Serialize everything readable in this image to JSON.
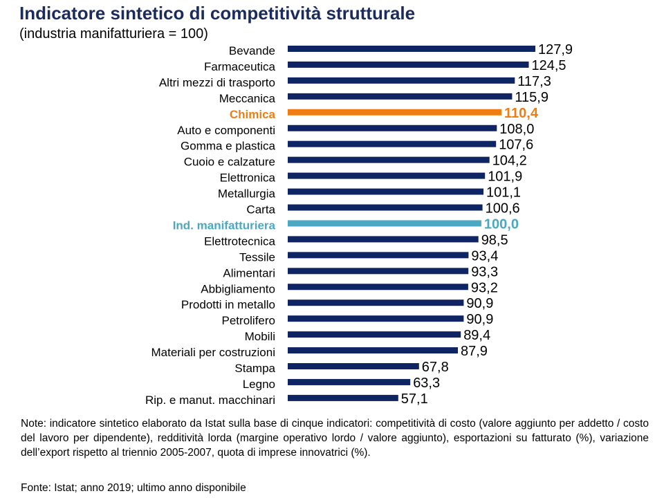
{
  "header": {
    "title": "Indicatore sintetico di competitività strutturale",
    "subtitle": "(industria manifatturiera = 100)"
  },
  "colors": {
    "default_bar": "#0f2463",
    "highlight_chimica": "#ef7d12",
    "highlight_industry": "#4aa8c0",
    "title": "#1b2b5c"
  },
  "chart_data": {
    "type": "bar",
    "orientation": "horizontal",
    "title": "Indicatore sintetico di competitività strutturale",
    "subtitle": "(industria manifatturiera = 100)",
    "xlabel": "",
    "ylabel": "",
    "xlim": [
      0,
      127.9
    ],
    "grid": false,
    "categories": [
      "Bevande",
      "Farmaceutica",
      "Altri mezzi di trasporto",
      "Meccanica",
      "Chimica",
      "Auto e componenti",
      "Gomma e plastica",
      "Cuoio e calzature",
      "Elettronica",
      "Metallurgia",
      "Carta",
      "Ind. manifatturiera",
      "Elettrotecnica",
      "Tessile",
      "Alimentari",
      "Abbigliamento",
      "Prodotti in metallo",
      "Petrolifero",
      "Mobili",
      "Materiali per costruzioni",
      "Stampa",
      "Legno",
      "Rip. e manut. macchinari"
    ],
    "values": [
      127.9,
      124.5,
      117.3,
      115.9,
      110.4,
      108.0,
      107.6,
      104.2,
      101.9,
      101.1,
      100.6,
      100.0,
      98.5,
      93.4,
      93.3,
      93.2,
      90.9,
      90.9,
      89.4,
      87.9,
      67.8,
      63.3,
      57.1
    ],
    "value_labels": [
      "127,9",
      "124,5",
      "117,3",
      "115,9",
      "110,4",
      "108,0",
      "107,6",
      "104,2",
      "101,9",
      "101,1",
      "100,6",
      "100,0",
      "98,5",
      "93,4",
      "93,3",
      "93,2",
      "90,9",
      "90,9",
      "89,4",
      "87,9",
      "67,8",
      "63,3",
      "57,1"
    ],
    "highlights": {
      "Chimica": "highlight_chimica",
      "Ind. manifatturiera": "highlight_industry"
    }
  },
  "footer": {
    "note": "Note: indicatore sintetico elaborato da Istat sulla base di cinque indicatori: competitività di costo (valore aggiunto per addetto / costo del lavoro per dipendente), redditività lorda (margine operativo lordo / valore aggiunto), esportazioni su fatturato (%), variazione dell’export rispetto al triennio 2005-2007, quota di imprese innovatrici (%).",
    "source": "Fonte: Istat; anno 2019; ultimo anno disponibile"
  }
}
